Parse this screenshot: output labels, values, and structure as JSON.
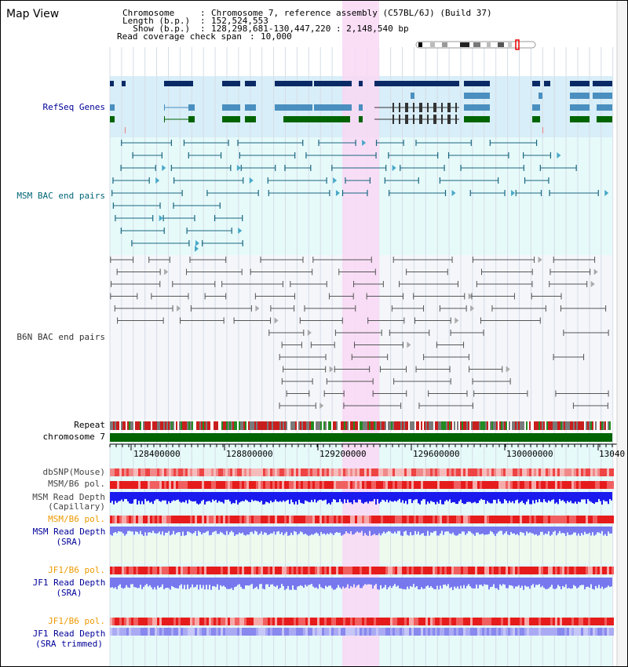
{
  "title": "Map View",
  "info": {
    "chromosome_key": "Chromosome   ",
    "chromosome_val": "Chromosome 7, reference assembly (C57BL/6J) (Build 37)",
    "length_key": "Length (b.p.)",
    "length_val": "152,524,553",
    "show_key": "  Show (b.p.)",
    "show_val": "128,298,681-130,447,220 : 2,148,540 bp",
    "span_key": "Read coverage check span",
    "span_val": "10,000"
  },
  "tracks": {
    "refseq": "RefSeq Genes",
    "msm_bac": "MSM BAC end pairs",
    "b6n_bac": "B6N BAC end pairs",
    "repeat": "Repeat",
    "chromosome": "chromosome 7",
    "dbsnp": "dbSNP(Mouse)",
    "msm_b6_pol_1": "MSM/B6 pol.",
    "msm_depth_cap_1": "MSM Read Depth",
    "msm_depth_cap_2": "(Capillary)",
    "msm_b6_pol_2": "MSM/B6 pol.",
    "msm_depth_sra_1": "MSM Read Depth",
    "msm_depth_sra_2": "(SRA)",
    "jf1_b6_pol_1": "JF1/B6 pol.",
    "jf1_depth_sra_1": "JF1 Read Depth",
    "jf1_depth_sra_2": "(SRA)",
    "jf1_b6_pol_2": "JF1/B6 pol.",
    "jf1_depth_trim_1": "JF1 Read Depth",
    "jf1_depth_trim_2": "(SRA trimmed)"
  },
  "axis": {
    "ticks": [
      "128400000",
      "128800000",
      "129200000",
      "129600000",
      "130000000",
      "13040"
    ]
  },
  "colors": {
    "label_blue": "#000099",
    "label_teal": "#006677",
    "label_gray": "#333333",
    "label_orange": "#ee9900",
    "highlight": "#f9d8f4",
    "refseq_bg": "#d8eef8",
    "msm_bg": "#e6fafa",
    "b6n_bg": "#f4f6fa",
    "gene_navy": "#0a2a66",
    "gene_steel": "#4a8fbf",
    "gene_green": "#006400",
    "chrom_green": "#006400",
    "depth_blue": "#1a1aee",
    "depth_light": "#7777ee"
  }
}
